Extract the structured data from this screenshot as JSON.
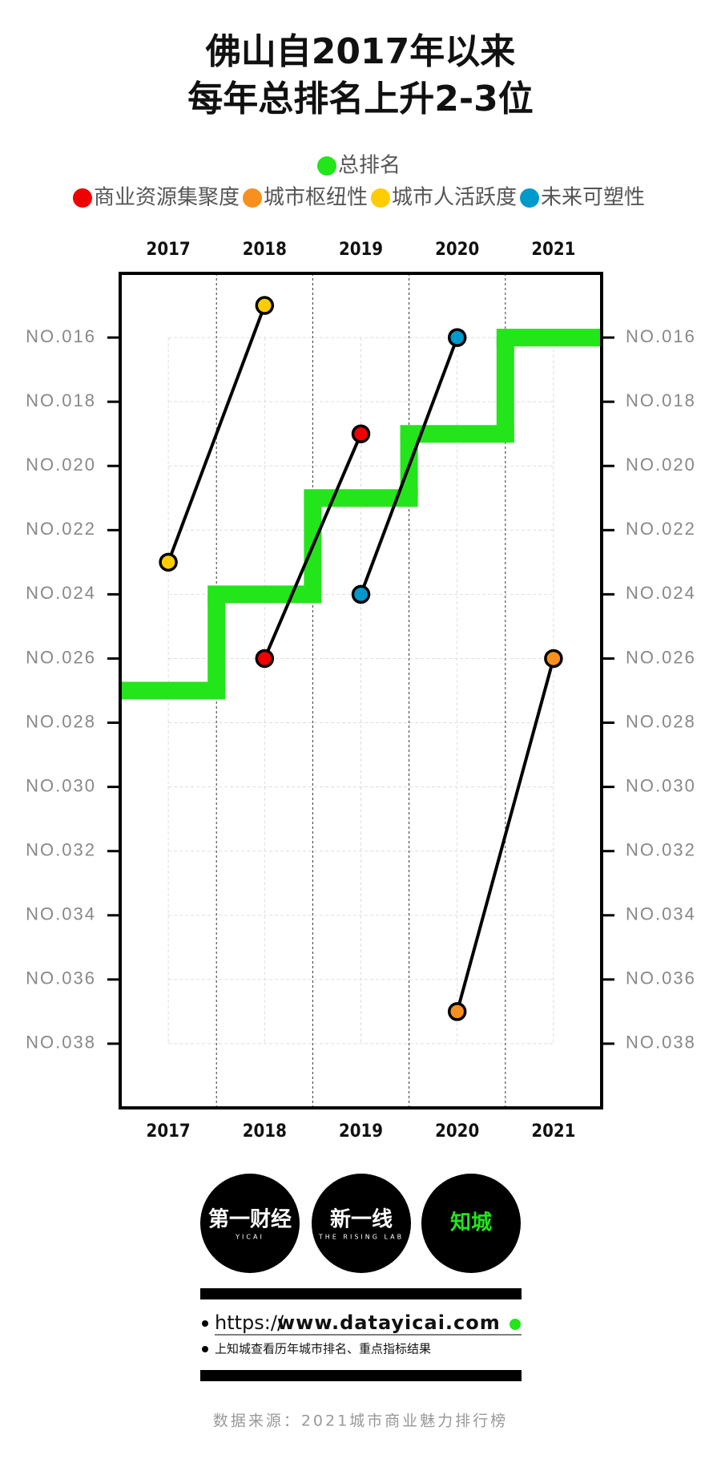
{
  "chart_data": {
    "type": "line",
    "title": [
      "佛山自2017年以来",
      "每年总排名上升2-3位"
    ],
    "categories": [
      "2017",
      "2018",
      "2019",
      "2020",
      "2021"
    ],
    "ylim": [
      14,
      40
    ],
    "y_inverted": true,
    "yticks": [
      {
        "value": 16,
        "label": "NO.016"
      },
      {
        "value": 18,
        "label": "NO.018"
      },
      {
        "value": 20,
        "label": "NO.020"
      },
      {
        "value": 22,
        "label": "NO.022"
      },
      {
        "value": 24,
        "label": "NO.024"
      },
      {
        "value": 26,
        "label": "NO.026"
      },
      {
        "value": 28,
        "label": "NO.028"
      },
      {
        "value": 30,
        "label": "NO.030"
      },
      {
        "value": 32,
        "label": "NO.032"
      },
      {
        "value": 34,
        "label": "NO.034"
      },
      {
        "value": 36,
        "label": "NO.036"
      },
      {
        "value": 38,
        "label": "NO.038"
      }
    ],
    "grid": true,
    "total": {
      "name": "总排名",
      "color": "#22e51a",
      "values": [
        27,
        24,
        21,
        19,
        16
      ]
    },
    "series": [
      {
        "name": "商业资源集聚度",
        "color": "#f00000",
        "values": [
          null,
          26,
          19,
          null,
          null
        ]
      },
      {
        "name": "城市枢纽性",
        "color": "#f7901e",
        "values": [
          null,
          null,
          null,
          37,
          26
        ]
      },
      {
        "name": "城市人活跃度",
        "color": "#ffcc00",
        "values": [
          23,
          15,
          null,
          null,
          null
        ]
      },
      {
        "name": "未来可塑性",
        "color": "#0099cc",
        "values": [
          null,
          null,
          24,
          16,
          null
        ]
      }
    ]
  },
  "footer": {
    "logos": [
      {
        "name": "第一财经",
        "sub": "YICAI"
      },
      {
        "name": "新一线",
        "sub": "THE RISING LAB"
      },
      {
        "name": "知城",
        "sub": null
      }
    ],
    "url_prefix": "https://",
    "url_domain": "www.datayicai.com",
    "note": "上知城查看历年城市排名、重点指标结果",
    "source": "数据来源：2021城市商业魅力排行榜"
  }
}
